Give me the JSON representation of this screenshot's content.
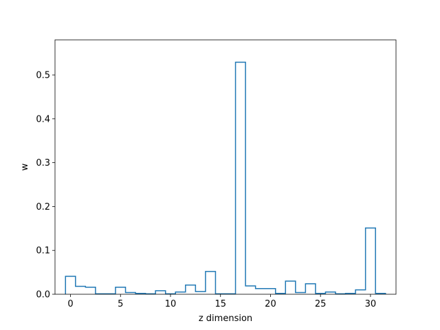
{
  "chart_data": {
    "type": "histogram-step",
    "title": "",
    "xlabel": "z dimension",
    "ylabel": "w",
    "xlim": [
      -1.55,
      32.55
    ],
    "ylim": [
      0,
      0.58
    ],
    "xticks": [
      0,
      5,
      10,
      15,
      20,
      25,
      30
    ],
    "xtick_labels": [
      "0",
      "5",
      "10",
      "15",
      "20",
      "25",
      "30"
    ],
    "yticks": [
      0.0,
      0.1,
      0.2,
      0.3,
      0.4,
      0.5
    ],
    "ytick_labels": [
      "0.0",
      "0.1",
      "0.2",
      "0.3",
      "0.4",
      "0.5"
    ],
    "grid": false,
    "line_color": "#1f77b4",
    "x": [
      0,
      1,
      2,
      3,
      4,
      5,
      6,
      7,
      8,
      9,
      10,
      11,
      12,
      13,
      14,
      15,
      16,
      17,
      18,
      19,
      20,
      21,
      22,
      23,
      24,
      25,
      26,
      27,
      28,
      29,
      30,
      31
    ],
    "values": [
      0.041,
      0.018,
      0.016,
      0.001,
      0.001,
      0.016,
      0.004,
      0.002,
      0.001,
      0.008,
      0.001,
      0.005,
      0.021,
      0.006,
      0.052,
      0.001,
      0.001,
      0.529,
      0.019,
      0.013,
      0.013,
      0.002,
      0.03,
      0.004,
      0.024,
      0.002,
      0.005,
      0.001,
      0.002,
      0.01,
      0.151,
      0.002
    ]
  }
}
